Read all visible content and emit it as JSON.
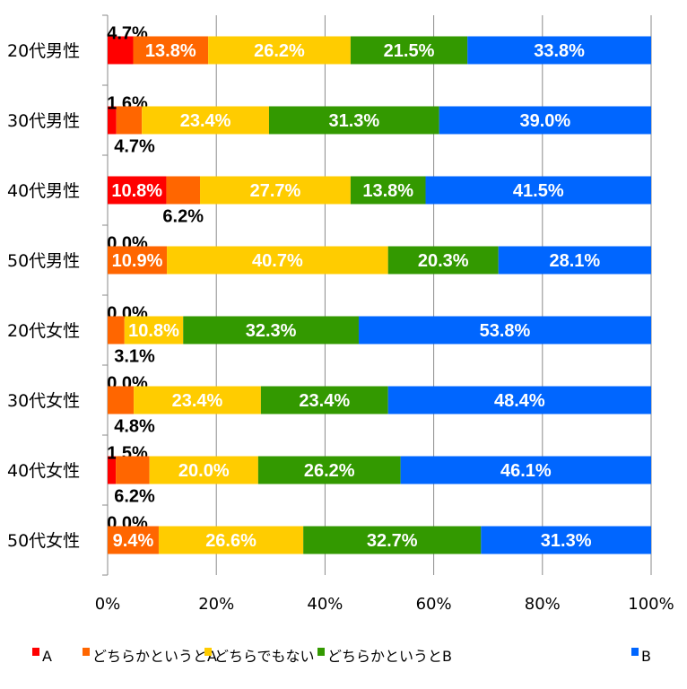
{
  "chart_data": {
    "type": "bar",
    "orientation": "horizontal",
    "stacked": true,
    "percent": true,
    "title": "",
    "xlabel": "",
    "ylabel": "",
    "xlim": [
      0,
      100
    ],
    "x_ticks": [
      "0%",
      "20%",
      "40%",
      "60%",
      "80%",
      "100%"
    ],
    "grid": "vertical",
    "legend_position": "bottom",
    "categories": [
      "20代男性",
      "30代男性",
      "40代男性",
      "50代男性",
      "20代女性",
      "30代女性",
      "40代女性",
      "50代女性"
    ],
    "series": [
      {
        "name": "A",
        "color": "#ff0000",
        "values": [
          4.7,
          1.6,
          10.8,
          0.0,
          0.0,
          0.0,
          1.5,
          0.0
        ],
        "labels": [
          "4.7%",
          "1.6%",
          "10.8%",
          "0.0%",
          "0.0%",
          "0.0%",
          "1.5%",
          "0.0%"
        ],
        "label_pos": [
          "above",
          "above",
          "in",
          "above",
          "above",
          "above",
          "above",
          "above"
        ]
      },
      {
        "name": "どちらかというとA",
        "color": "#ff6600",
        "values": [
          13.8,
          4.7,
          6.2,
          10.9,
          3.1,
          4.8,
          6.2,
          9.4
        ],
        "labels": [
          "13.8%",
          "4.7%",
          "6.2%",
          "10.9%",
          "3.1%",
          "4.8%",
          "6.2%",
          "9.4%"
        ],
        "label_pos": [
          "in",
          "below",
          "below",
          "in",
          "below",
          "below",
          "below",
          "in"
        ]
      },
      {
        "name": "どちらでもない",
        "color": "#ffcc00",
        "values": [
          26.2,
          23.4,
          27.7,
          40.7,
          10.8,
          23.4,
          20.0,
          26.6
        ],
        "labels": [
          "26.2%",
          "23.4%",
          "27.7%",
          "40.7%",
          "10.8%",
          "23.4%",
          "20.0%",
          "26.6%"
        ],
        "label_pos": [
          "in",
          "in",
          "in",
          "in",
          "in",
          "in",
          "in",
          "in"
        ]
      },
      {
        "name": "どちらかというとB",
        "color": "#339900",
        "values": [
          21.5,
          31.3,
          13.8,
          20.3,
          32.3,
          23.4,
          26.2,
          32.7
        ],
        "labels": [
          "21.5%",
          "31.3%",
          "13.8%",
          "20.3%",
          "32.3%",
          "23.4%",
          "26.2%",
          "32.7%"
        ],
        "label_pos": [
          "in",
          "in",
          "in",
          "in",
          "in",
          "in",
          "in",
          "in"
        ]
      },
      {
        "name": "B",
        "color": "#0066ff",
        "values": [
          33.8,
          39.0,
          41.5,
          28.1,
          53.8,
          48.4,
          46.1,
          31.3
        ],
        "labels": [
          "33.8%",
          "39.0%",
          "41.5%",
          "28.1%",
          "53.8%",
          "48.4%",
          "46.1%",
          "31.3%"
        ],
        "label_pos": [
          "in",
          "in",
          "in",
          "in",
          "in",
          "in",
          "in",
          "in"
        ]
      }
    ]
  }
}
